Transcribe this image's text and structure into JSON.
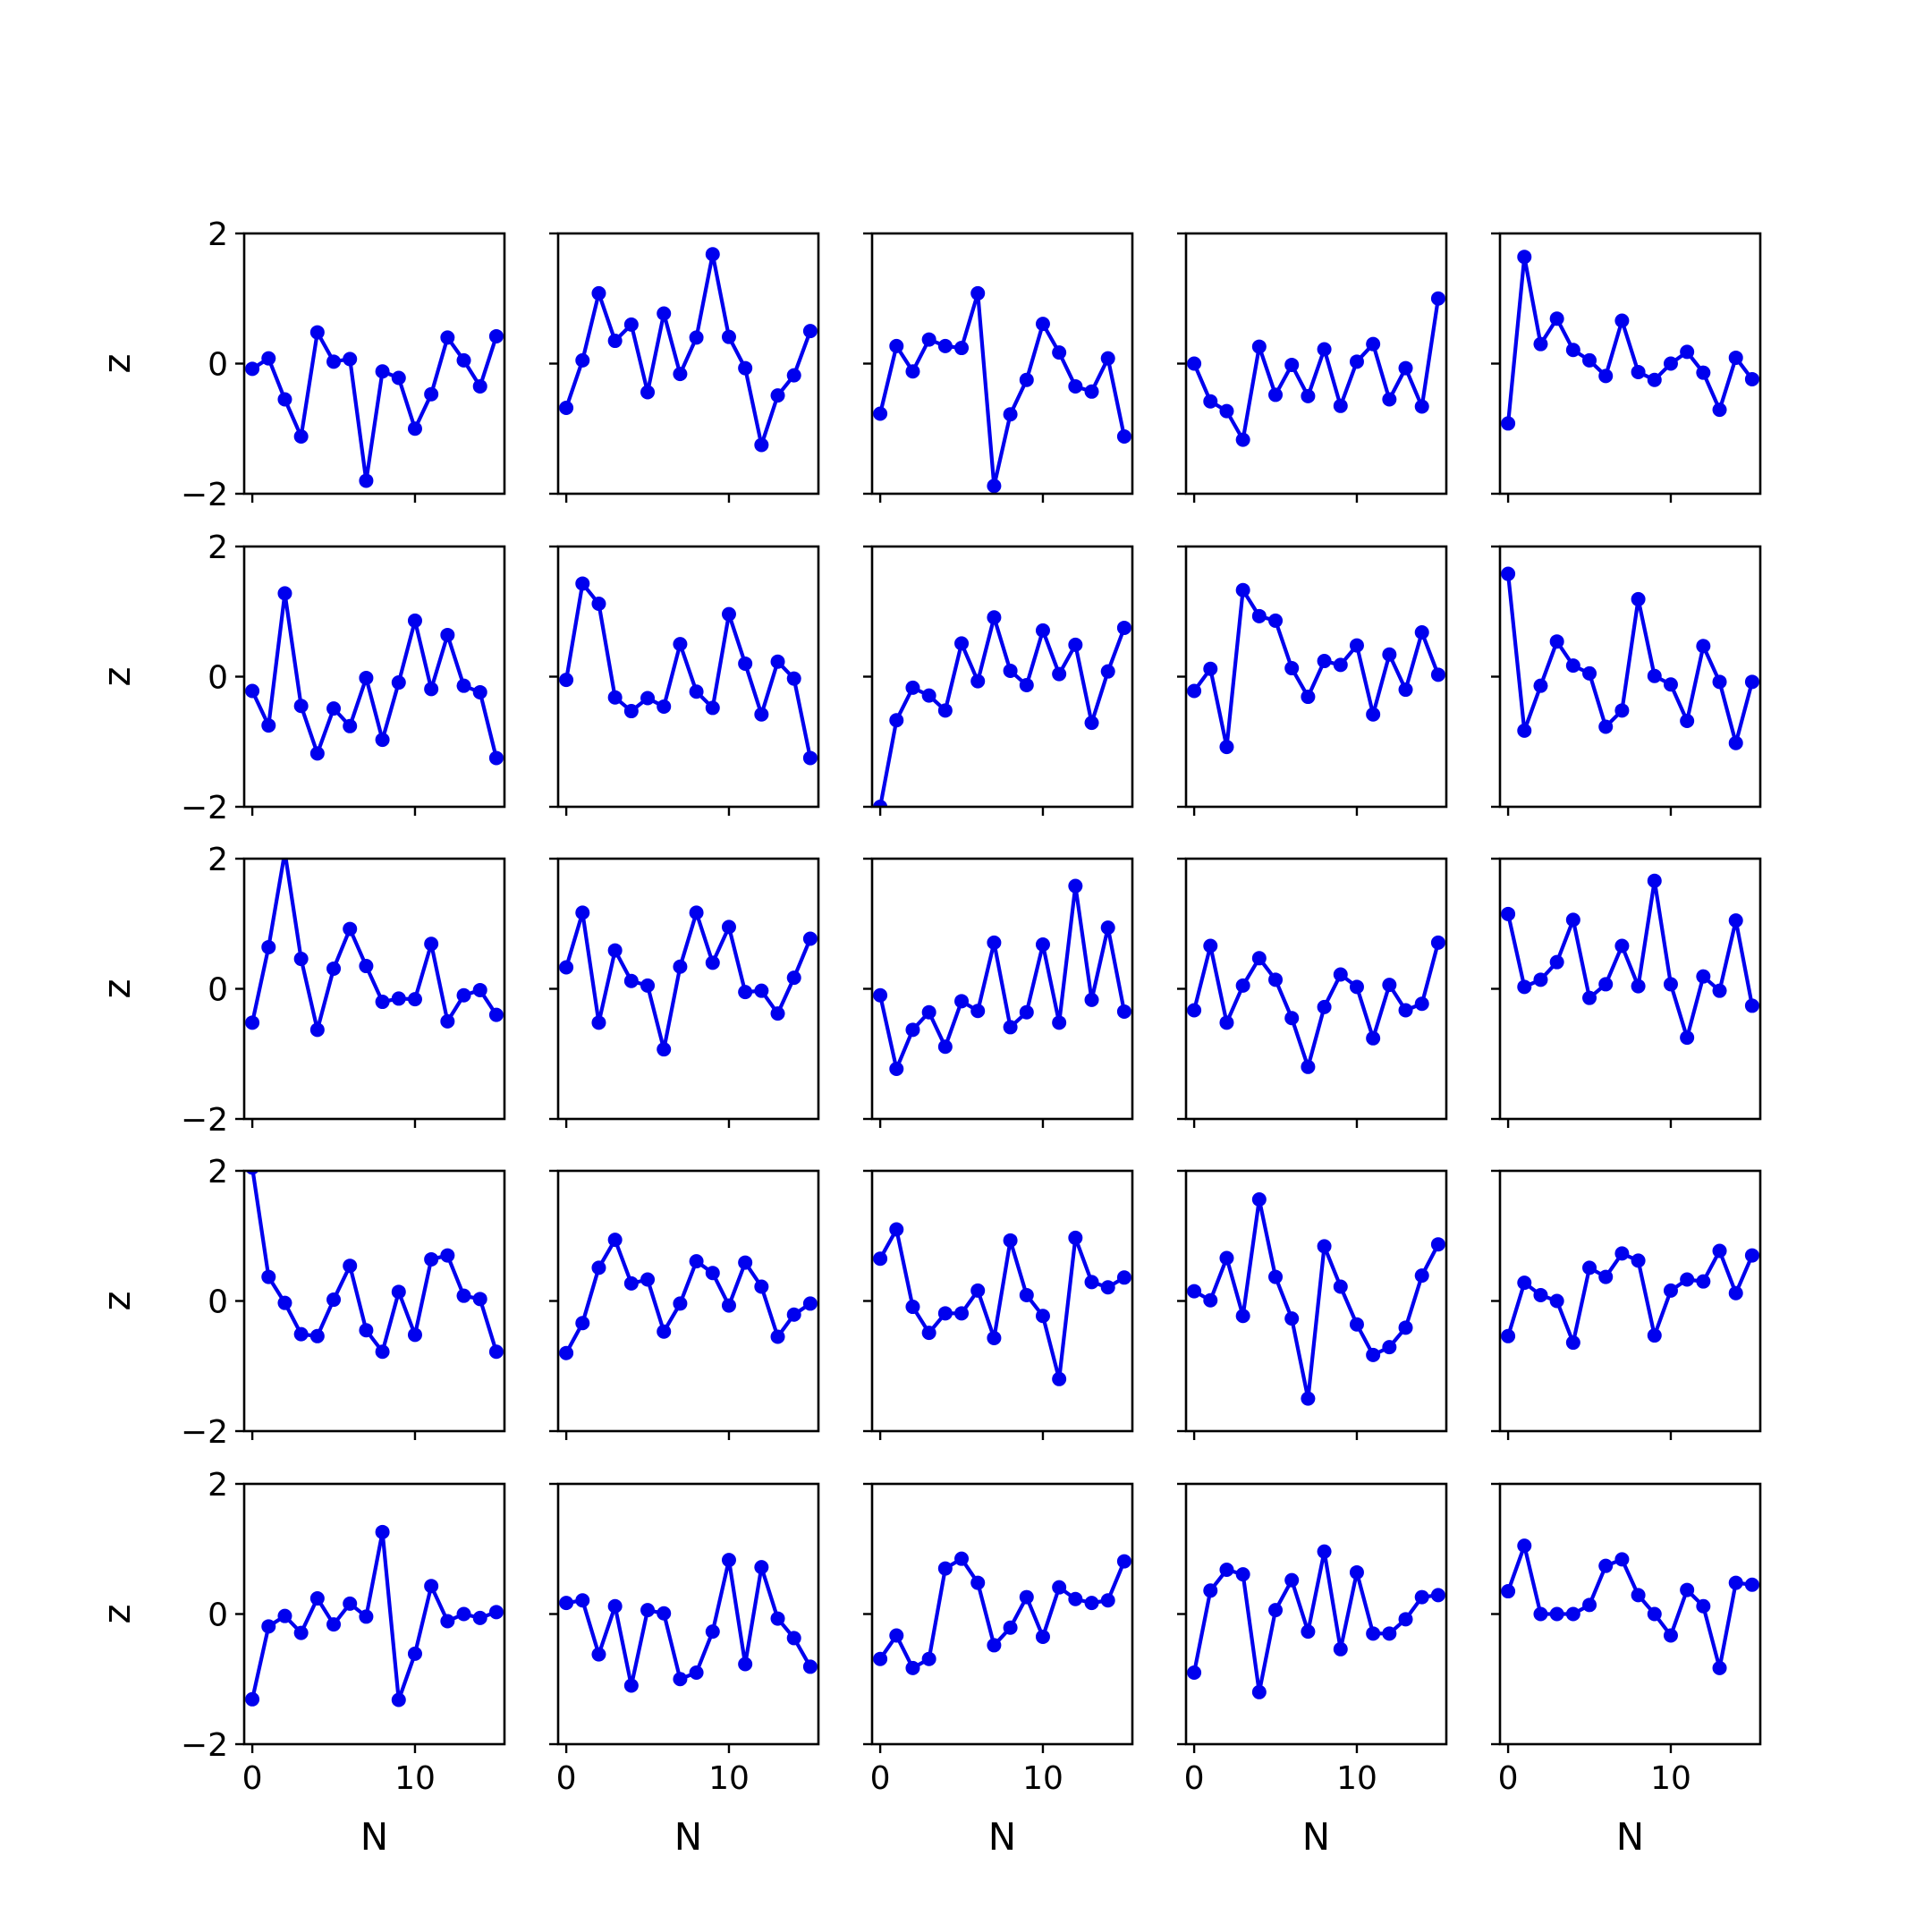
{
  "chart_data": {
    "type": "line",
    "layout": "5x5 grid of small-multiple subplots",
    "xlabel": "N",
    "ylabel": "z",
    "xticks": [
      0,
      10
    ],
    "yticks": [
      -2,
      0,
      2
    ],
    "xlim": [
      -0.5,
      15.5
    ],
    "ylim": [
      -2,
      2
    ],
    "color": "#0000ee",
    "marker": "circle",
    "panels": [
      [
        {
          "y": [
            -0.08,
            0.08,
            -0.55,
            -1.12,
            0.48,
            0.03,
            0.07,
            -1.8,
            -0.12,
            -0.22,
            -1.0,
            -0.47,
            0.4,
            0.05,
            -0.35,
            0.42
          ]
        },
        {
          "y": [
            -0.68,
            0.05,
            1.08,
            0.35,
            0.6,
            -0.44,
            0.77,
            -0.16,
            0.4,
            1.68,
            0.41,
            -0.07,
            -1.25,
            -0.49,
            -0.18,
            0.5
          ]
        },
        {
          "y": [
            -0.77,
            0.27,
            -0.12,
            0.37,
            0.27,
            0.24,
            1.08,
            -1.88,
            -0.78,
            -0.25,
            0.61,
            0.17,
            -0.35,
            -0.43,
            0.08,
            -1.12
          ]
        },
        {
          "y": [
            0.0,
            -0.58,
            -0.73,
            -1.17,
            0.26,
            -0.48,
            -0.02,
            -0.5,
            0.22,
            -0.65,
            0.03,
            0.3,
            -0.55,
            -0.07,
            -0.66,
            1.0
          ]
        },
        {
          "y": [
            -0.92,
            1.64,
            0.3,
            0.69,
            0.21,
            0.05,
            -0.19,
            0.66,
            -0.13,
            -0.25,
            0.0,
            0.18,
            -0.14,
            -0.71,
            0.09,
            -0.24
          ]
        }
      ],
      [
        {
          "y": [
            -0.22,
            -0.75,
            1.28,
            -0.45,
            -1.18,
            -0.49,
            -0.76,
            -0.02,
            -0.97,
            -0.09,
            0.86,
            -0.19,
            0.64,
            -0.14,
            -0.24,
            -1.25
          ]
        },
        {
          "y": [
            -0.05,
            1.43,
            1.12,
            -0.32,
            -0.53,
            -0.33,
            -0.46,
            0.5,
            -0.23,
            -0.48,
            0.96,
            0.2,
            -0.58,
            0.23,
            -0.03,
            -1.25
          ]
        },
        {
          "y": [
            -2.0,
            -0.67,
            -0.17,
            -0.29,
            -0.52,
            0.51,
            -0.07,
            0.91,
            0.09,
            -0.13,
            0.71,
            0.04,
            0.49,
            -0.71,
            0.08,
            0.75
          ]
        },
        {
          "y": [
            -0.22,
            0.12,
            -1.08,
            1.33,
            0.93,
            0.86,
            0.13,
            -0.31,
            0.24,
            0.18,
            0.48,
            -0.58,
            0.34,
            -0.2,
            0.68,
            0.03
          ]
        },
        {
          "y": [
            1.58,
            -0.83,
            -0.14,
            0.54,
            0.17,
            0.05,
            -0.77,
            -0.52,
            1.19,
            0.01,
            -0.12,
            -0.68,
            0.47,
            -0.08,
            -1.02,
            -0.08
          ]
        }
      ],
      [
        {
          "y": [
            -0.52,
            0.64,
            2.1,
            0.46,
            -0.63,
            0.31,
            0.92,
            0.35,
            -0.2,
            -0.15,
            -0.16,
            0.69,
            -0.5,
            -0.1,
            -0.02,
            -0.4
          ]
        },
        {
          "y": [
            0.33,
            1.17,
            -0.52,
            0.59,
            0.12,
            0.05,
            -0.93,
            0.34,
            1.17,
            0.4,
            0.95,
            -0.05,
            -0.03,
            -0.38,
            0.17,
            0.77
          ]
        },
        {
          "y": [
            -0.1,
            -1.23,
            -0.63,
            -0.36,
            -0.89,
            -0.19,
            -0.34,
            0.71,
            -0.59,
            -0.36,
            0.68,
            -0.52,
            1.58,
            -0.17,
            0.94,
            -0.35
          ]
        },
        {
          "y": [
            -0.33,
            0.66,
            -0.52,
            0.05,
            0.47,
            0.14,
            -0.45,
            -1.2,
            -0.28,
            0.22,
            0.03,
            -0.76,
            0.06,
            -0.33,
            -0.23,
            0.71
          ]
        },
        {
          "y": [
            1.15,
            0.03,
            0.14,
            0.41,
            1.06,
            -0.14,
            0.07,
            0.66,
            0.04,
            1.66,
            0.07,
            -0.75,
            0.19,
            -0.03,
            1.05,
            -0.26
          ]
        }
      ],
      [
        {
          "y": [
            2.05,
            0.37,
            -0.03,
            -0.51,
            -0.54,
            0.02,
            0.54,
            -0.45,
            -0.78,
            0.14,
            -0.52,
            0.64,
            0.7,
            0.08,
            0.03,
            -0.78
          ]
        },
        {
          "y": [
            -0.8,
            -0.34,
            0.51,
            0.94,
            0.27,
            0.33,
            -0.47,
            -0.04,
            0.61,
            0.43,
            -0.07,
            0.59,
            0.22,
            -0.55,
            -0.21,
            -0.04
          ]
        },
        {
          "y": [
            0.65,
            1.1,
            -0.09,
            -0.49,
            -0.19,
            -0.19,
            0.16,
            -0.57,
            0.93,
            0.09,
            -0.23,
            -1.2,
            0.97,
            0.29,
            0.21,
            0.36
          ]
        },
        {
          "y": [
            0.15,
            0.01,
            0.66,
            -0.23,
            1.56,
            0.37,
            -0.27,
            -1.5,
            0.84,
            0.22,
            -0.36,
            -0.83,
            -0.71,
            -0.41,
            0.39,
            0.87
          ]
        },
        {
          "y": [
            -0.54,
            0.28,
            0.09,
            0.0,
            -0.64,
            0.51,
            0.37,
            0.73,
            0.62,
            -0.53,
            0.16,
            0.33,
            0.3,
            0.77,
            0.12,
            0.7
          ]
        }
      ],
      [
        {
          "y": [
            -1.31,
            -0.19,
            -0.03,
            -0.29,
            0.24,
            -0.16,
            0.16,
            -0.04,
            1.26,
            -1.32,
            -0.61,
            0.43,
            -0.11,
            0.0,
            -0.06,
            0.03
          ]
        },
        {
          "y": [
            0.17,
            0.21,
            -0.62,
            0.12,
            -1.1,
            0.06,
            0.01,
            -1.0,
            -0.9,
            -0.27,
            0.83,
            -0.77,
            0.72,
            -0.07,
            -0.37,
            -0.81
          ]
        },
        {
          "y": [
            -0.69,
            -0.33,
            -0.83,
            -0.69,
            0.7,
            0.85,
            0.48,
            -0.48,
            -0.21,
            0.26,
            -0.35,
            0.41,
            0.23,
            0.17,
            0.21,
            0.81
          ]
        },
        {
          "y": [
            -0.9,
            0.36,
            0.68,
            0.61,
            -1.2,
            0.06,
            0.52,
            -0.27,
            0.96,
            -0.54,
            0.64,
            -0.3,
            -0.3,
            -0.08,
            0.26,
            0.29
          ]
        },
        {
          "y": [
            0.35,
            1.05,
            0.0,
            0.0,
            0.0,
            0.14,
            0.74,
            0.84,
            0.29,
            0.0,
            -0.33,
            0.37,
            0.12,
            -0.83,
            0.48,
            0.45
          ]
        }
      ]
    ]
  }
}
